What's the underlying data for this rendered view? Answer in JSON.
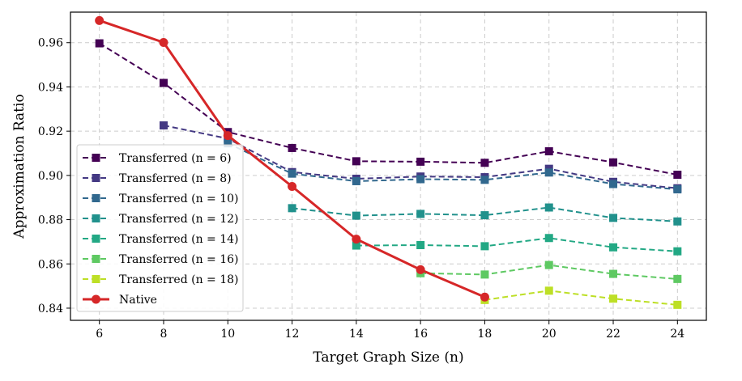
{
  "chart_data": {
    "type": "line",
    "xlabel": "Target Graph Size (n)",
    "ylabel": "Approximation Ratio",
    "xlim": [
      5.1,
      24.9
    ],
    "ylim": [
      0.8345,
      0.9738
    ],
    "xticks": [
      6,
      8,
      10,
      12,
      14,
      16,
      18,
      20,
      22,
      24
    ],
    "yticks": [
      0.84,
      0.86,
      0.88,
      0.9,
      0.92,
      0.94,
      0.96
    ],
    "ytick_labels": [
      "0.84",
      "0.86",
      "0.88",
      "0.90",
      "0.92",
      "0.94",
      "0.96"
    ],
    "grid": true,
    "legend_position": "lower-left",
    "series": [
      {
        "name": "Transferred (n = 6)",
        "color": "#440154",
        "style": "dashed",
        "marker": "square",
        "x": [
          6,
          8,
          10,
          12,
          14,
          16,
          18,
          20,
          22,
          24
        ],
        "y": [
          0.9597,
          0.9418,
          0.9196,
          0.9124,
          0.9064,
          0.9062,
          0.9057,
          0.9109,
          0.9059,
          0.9003
        ]
      },
      {
        "name": "Transferred (n = 8)",
        "color": "#443983",
        "style": "dashed",
        "marker": "square",
        "x": [
          8,
          10,
          12,
          14,
          16,
          18,
          20,
          22,
          24
        ],
        "y": [
          0.9226,
          0.9166,
          0.9015,
          0.8985,
          0.8995,
          0.8992,
          0.903,
          0.8971,
          0.8942
        ]
      },
      {
        "name": "Transferred (n = 10)",
        "color": "#31688e",
        "style": "dashed",
        "marker": "square",
        "x": [
          10,
          12,
          14,
          16,
          18,
          20,
          22,
          24
        ],
        "y": [
          0.9145,
          0.9008,
          0.8974,
          0.8983,
          0.898,
          0.9013,
          0.8961,
          0.8937
        ]
      },
      {
        "name": "Transferred (n = 12)",
        "color": "#21918c",
        "style": "dashed",
        "marker": "square",
        "x": [
          12,
          14,
          16,
          18,
          20,
          22,
          24
        ],
        "y": [
          0.8852,
          0.8818,
          0.8826,
          0.882,
          0.8855,
          0.8808,
          0.8792
        ]
      },
      {
        "name": "Transferred (n = 14)",
        "color": "#22a884",
        "style": "dashed",
        "marker": "square",
        "x": [
          14,
          16,
          18,
          20,
          22,
          24
        ],
        "y": [
          0.8683,
          0.8685,
          0.868,
          0.8717,
          0.8675,
          0.8657
        ]
      },
      {
        "name": "Transferred (n = 16)",
        "color": "#5ec962",
        "style": "dashed",
        "marker": "square",
        "x": [
          16,
          18,
          20,
          22,
          24
        ],
        "y": [
          0.8558,
          0.8552,
          0.8595,
          0.8555,
          0.8532
        ]
      },
      {
        "name": "Transferred (n = 18)",
        "color": "#bddf26",
        "style": "dashed",
        "marker": "square",
        "x": [
          18,
          20,
          22,
          24
        ],
        "y": [
          0.8437,
          0.8479,
          0.8443,
          0.8415
        ]
      },
      {
        "name": "Native",
        "color": "#d62728",
        "style": "solid",
        "marker": "circle",
        "x": [
          6,
          8,
          10,
          12,
          14,
          16,
          18
        ],
        "y": [
          0.97,
          0.9601,
          0.918,
          0.895,
          0.8712,
          0.8574,
          0.845
        ]
      }
    ]
  }
}
